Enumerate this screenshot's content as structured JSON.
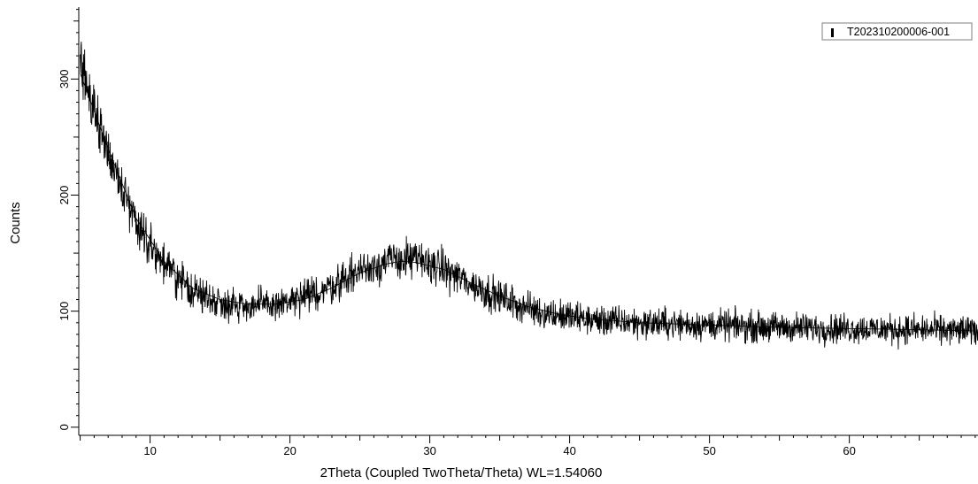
{
  "chart_data": {
    "type": "line",
    "title": "",
    "xlabel": "2Theta (Coupled TwoTheta/Theta) WL=1.54060",
    "ylabel": "Counts",
    "xlim": [
      4.9,
      69.2
    ],
    "ylim": [
      -7,
      362
    ],
    "x_major_ticks": [
      10,
      20,
      30,
      40,
      50,
      60
    ],
    "y_major_ticks": [
      0,
      100,
      200,
      300
    ],
    "grid": false,
    "legend": {
      "position": "top-right",
      "entries": [
        "T202310200006-001"
      ]
    },
    "series": [
      {
        "name": "T202310200006-001",
        "color": "#000000",
        "x_start": 5,
        "x_end": 69.2,
        "sampled_envelope": [
          [
            5,
            310
          ],
          [
            6,
            275
          ],
          [
            7,
            238
          ],
          [
            8,
            205
          ],
          [
            9,
            178
          ],
          [
            10,
            158
          ],
          [
            11,
            141
          ],
          [
            12,
            128
          ],
          [
            13,
            118
          ],
          [
            14,
            112
          ],
          [
            15,
            108
          ],
          [
            16,
            106
          ],
          [
            17,
            105
          ],
          [
            18,
            105
          ],
          [
            19,
            106
          ],
          [
            20,
            108
          ],
          [
            21,
            111
          ],
          [
            22,
            116
          ],
          [
            23,
            122
          ],
          [
            24,
            129
          ],
          [
            25,
            135
          ],
          [
            26,
            140
          ],
          [
            27,
            143
          ],
          [
            28,
            145
          ],
          [
            29,
            144
          ],
          [
            30,
            141
          ],
          [
            31,
            136
          ],
          [
            32,
            130
          ],
          [
            33,
            123
          ],
          [
            34,
            117
          ],
          [
            35,
            112
          ],
          [
            36,
            107
          ],
          [
            37,
            103
          ],
          [
            38,
            99
          ],
          [
            40,
            95
          ],
          [
            42,
            92
          ],
          [
            45,
            90
          ],
          [
            50,
            88
          ],
          [
            55,
            86
          ],
          [
            60,
            85
          ],
          [
            65,
            84
          ],
          [
            69,
            83
          ]
        ],
        "noise_amplitude": 12
      },
      {
        "name": "",
        "color": "#000000",
        "style": "smoothed",
        "x": [
          5,
          7,
          9,
          11,
          13,
          15,
          17,
          19,
          21,
          23,
          25,
          27,
          28,
          29,
          31,
          33,
          35,
          37,
          39,
          41,
          45,
          50,
          55,
          60,
          65,
          69
        ],
        "y": [
          305,
          240,
          180,
          143,
          120,
          110,
          106,
          106,
          110,
          120,
          133,
          141,
          143,
          142,
          136,
          124,
          113,
          104,
          98,
          94,
          90,
          88,
          86,
          85,
          84,
          83
        ]
      }
    ]
  }
}
